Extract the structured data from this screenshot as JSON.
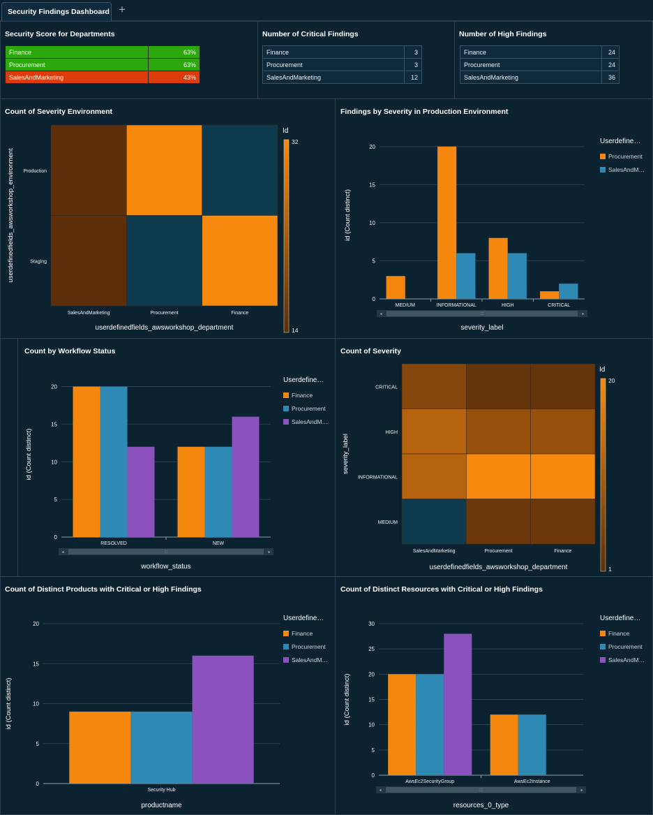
{
  "tab": {
    "title": "Security Findings Dashboard",
    "add_label": "+"
  },
  "colors": {
    "finance": "#f5870f",
    "procurement": "#2e8ab4",
    "sales": "#8b51bd",
    "critical_bg": "#dc3b0a",
    "good_bg": "#2ca80c",
    "heat_low": "#5c2f0a",
    "heat_high": "#f7890f",
    "heat_empty": "#0e3a4e"
  },
  "score": {
    "title": "Security Score for Departments",
    "rows": [
      {
        "dept": "Finance",
        "value": "63%",
        "status": "good"
      },
      {
        "dept": "Procurement",
        "value": "63%",
        "status": "good"
      },
      {
        "dept": "SalesAndMarketing",
        "value": "43%",
        "status": "bad"
      }
    ]
  },
  "critical": {
    "title": "Number of Critical Findings",
    "rows": [
      {
        "dept": "Finance",
        "value": "3"
      },
      {
        "dept": "Procurement",
        "value": "3"
      },
      {
        "dept": "SalesAndMarketing",
        "value": "12"
      }
    ]
  },
  "high": {
    "title": "Number of High Findings",
    "rows": [
      {
        "dept": "Finance",
        "value": "24"
      },
      {
        "dept": "Procurement",
        "value": "24"
      },
      {
        "dept": "SalesAndMarketing",
        "value": "36"
      }
    ]
  },
  "panels": {
    "env_heat": "Count of Severity Environment",
    "prod_bar": "Findings by Severity in Production Environment",
    "workflow_bar": "Count by Workflow Status",
    "sev_heat": "Count of Severity",
    "products_bar": "Count of Distinct Products with Critical or High Findings",
    "resources_bar": "Count of Distinct Resources with Critical or High Findings"
  },
  "chart_data": [
    {
      "id": "env_heat",
      "type": "heatmap",
      "title": "Count of Severity Environment",
      "xlabel": "userdefinedfields_awsworkshop_department",
      "ylabel": "userdefinedfields_awsworkshop_environment",
      "x": [
        "SalesAndMarketing",
        "Procurement",
        "Finance"
      ],
      "y": [
        "Production",
        "Staging"
      ],
      "values": [
        [
          14,
          32,
          null
        ],
        [
          14,
          null,
          32
        ]
      ],
      "legend_title": "Id",
      "legend_min": 14,
      "legend_max": 32
    },
    {
      "id": "prod_bar",
      "type": "bar",
      "title": "Findings by Severity in Production Environment",
      "categories": [
        "MEDIUM",
        "INFORMATIONAL",
        "HIGH",
        "CRITICAL"
      ],
      "series": [
        {
          "name": "Procurement",
          "color": "#f5870f",
          "values": [
            3,
            20,
            8,
            1
          ]
        },
        {
          "name": "SalesAndMarketing",
          "color": "#2e8ab4",
          "values": [
            0,
            6,
            6,
            2
          ]
        }
      ],
      "xlabel": "severity_label",
      "ylabel": "id (Count distinct)",
      "ylim": [
        0,
        22
      ],
      "yticks": [
        0,
        5,
        10,
        15,
        20
      ],
      "legend_title": "Userdefine…",
      "legend_labels": [
        "Procurement",
        "SalesAndM…"
      ]
    },
    {
      "id": "workflow_bar",
      "type": "bar",
      "title": "Count by Workflow Status",
      "categories": [
        "RESOLVED",
        "NEW"
      ],
      "series": [
        {
          "name": "Finance",
          "color": "#f5870f",
          "values": [
            20,
            12
          ]
        },
        {
          "name": "Procurement",
          "color": "#2e8ab4",
          "values": [
            20,
            12
          ]
        },
        {
          "name": "SalesAndMarketing",
          "color": "#8b51bd",
          "values": [
            12,
            16
          ]
        }
      ],
      "xlabel": "workflow_status",
      "ylabel": "id (Count distinct)",
      "ylim": [
        0,
        22
      ],
      "yticks": [
        0,
        5,
        10,
        15,
        20
      ],
      "legend_title": "Userdefine…",
      "legend_labels": [
        "Finance",
        "Procurement",
        "SalesAndM…"
      ]
    },
    {
      "id": "sev_heat",
      "type": "heatmap",
      "title": "Count of Severity",
      "xlabel": "userdefinedfields_awsworkshop_department",
      "ylabel": "severity_label",
      "x": [
        "SalesAndMarketing",
        "Procurement",
        "Finance"
      ],
      "y": [
        "CRITICAL",
        "HIGH",
        "INFORMATIONAL",
        "MEDIUM"
      ],
      "values": [
        [
          6,
          2,
          2
        ],
        [
          12,
          8,
          8
        ],
        [
          12,
          20,
          20
        ],
        [
          null,
          3,
          3
        ]
      ],
      "legend_title": "Id",
      "legend_min": 1,
      "legend_max": 20
    },
    {
      "id": "products_bar",
      "type": "bar",
      "title": "Count of Distinct Products with Critical or High Findings",
      "categories": [
        "Security Hub"
      ],
      "series": [
        {
          "name": "Finance",
          "color": "#f5870f",
          "values": [
            9
          ]
        },
        {
          "name": "Procurement",
          "color": "#2e8ab4",
          "values": [
            9
          ]
        },
        {
          "name": "SalesAndMarketing",
          "color": "#8b51bd",
          "values": [
            16
          ]
        }
      ],
      "xlabel": "productname",
      "ylabel": "id (Count distinct)",
      "ylim": [
        0,
        20
      ],
      "yticks": [
        0,
        5,
        10,
        15,
        20
      ],
      "legend_title": "Userdefine…",
      "legend_labels": [
        "Finance",
        "Procurement",
        "SalesAndM…"
      ]
    },
    {
      "id": "resources_bar",
      "type": "bar",
      "title": "Count of Distinct Resources with Critical or High Findings",
      "categories": [
        "AwsEc2SecurityGroup",
        "AwsEc2Instance"
      ],
      "series": [
        {
          "name": "Finance",
          "color": "#f5870f",
          "values": [
            20,
            12
          ]
        },
        {
          "name": "Procurement",
          "color": "#2e8ab4",
          "values": [
            20,
            12
          ]
        },
        {
          "name": "SalesAndMarketing",
          "color": "#8b51bd",
          "values": [
            28,
            0
          ]
        }
      ],
      "xlabel": "resources_0_type",
      "ylabel": "id (Count distinct)",
      "ylim": [
        0,
        30
      ],
      "yticks": [
        0,
        5,
        10,
        15,
        20,
        25,
        30
      ],
      "legend_title": "Userdefine…",
      "legend_labels": [
        "Finance",
        "Procurement",
        "SalesAndM…"
      ]
    }
  ]
}
